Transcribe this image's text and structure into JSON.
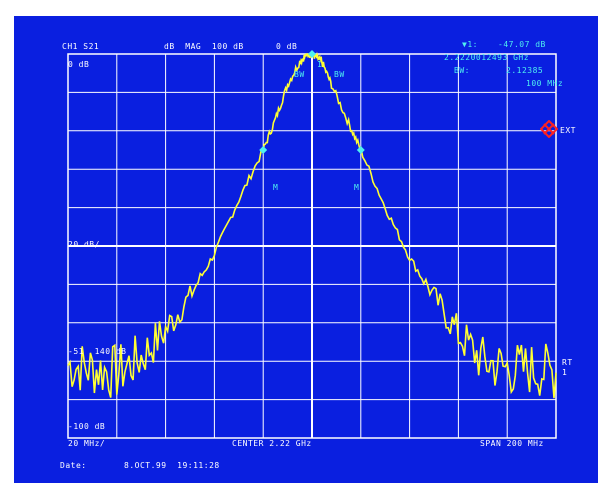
{
  "header": {
    "channel": "CH1 S21",
    "format": "dB  MAG  100 dB",
    "ref_value": "0 dB",
    "marker_label": "▼1:",
    "marker_value": "-47.07 dB",
    "marker_freq": "2.2220012493 GHz",
    "bw_label": "BW:",
    "bw_value": "2.12385",
    "bw_freq": "100 MHz"
  },
  "grid_labels": {
    "ref_top": "0 dB",
    "scale": "20 dB/",
    "threshold": "-51  140 dB",
    "bottom_ref": "-100 dB",
    "ext": "EXT",
    "rt": "RT",
    "rt2": "1"
  },
  "footer": {
    "res": "20 MHz/",
    "center": "CENTER 2.22 GHz",
    "span": "SPAN 200 MHz",
    "date_label": "Date:",
    "date_value": "8.OCT.99  19:11:28"
  },
  "markers": {
    "m_left": "M",
    "m_right": "M",
    "m_top_left": "BW",
    "m_top_right": "BW",
    "m_top": "1"
  },
  "colors": {
    "background": "#0a1fe0",
    "grid": "#ffffff",
    "trace": "#ffff33",
    "marker": "#4ff0f0",
    "ext_icon": "#ff2020"
  },
  "chart_data": {
    "type": "line",
    "x": [
      2120,
      2130,
      2140,
      2150,
      2160,
      2170,
      2180,
      2190,
      2200,
      2205,
      2210,
      2215,
      2218,
      2220,
      2222,
      2224,
      2228,
      2235,
      2240,
      2250,
      2260,
      2270,
      2280,
      2290,
      2300,
      2310,
      2320
    ],
    "y": [
      -81,
      -82,
      -83,
      -79,
      -72,
      -63,
      -52,
      -38,
      -25,
      -17,
      -8,
      -2,
      0,
      0,
      -1,
      -2,
      -8,
      -18,
      -25,
      -40,
      -53,
      -63,
      -73,
      -80,
      -82,
      -82,
      -83
    ],
    "xlabel": "",
    "ylabel": "",
    "xlim": [
      2120,
      2320
    ],
    "ylim": [
      -100,
      0
    ],
    "grid": true
  }
}
